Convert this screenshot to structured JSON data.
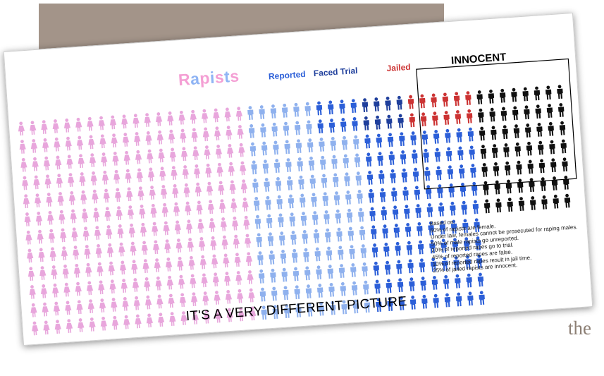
{
  "background": {
    "block_color": "#a39489",
    "corner_text": "the"
  },
  "title_word": "Rapists",
  "title_letter_colors": [
    "#f49fd4",
    "#8fb4f4",
    "#f49fd4",
    "#8fb4f4",
    "#f49fd4",
    "#8fb4f4",
    "#f49fd4"
  ],
  "labels": {
    "reported": "Reported",
    "faced_trial": "Faced Trial",
    "jailed": "Jailed",
    "innocent": "INNOCENT"
  },
  "notes": [
    "Based on:",
    "50% of rapists are female.",
    "Under law, females cannot be prosecuted for raping males.",
    "50% of male rapists go unreported.",
    "20% of reported rapes go to trial.",
    "45% of reported rapes are false.",
    "10% of reported rapes result in jail time.",
    "25% of jailed rapists are innocent."
  ],
  "tagline": "IT'S A VERY DIFFERENT PICTURE",
  "chart_data": {
    "type": "pictograph",
    "columns": 48,
    "rows": 12,
    "segments": [
      {
        "category": "female",
        "icon": "female",
        "color": "#e8a6dc",
        "col_start": 0,
        "col_end": 19,
        "row_start": 0,
        "row_end": 12
      },
      {
        "category": "unreported",
        "icon": "male",
        "color": "#8fb1ee",
        "col_start": 20,
        "col_end": 25,
        "row_start": 0,
        "row_end": 12
      },
      {
        "category": "unreported",
        "icon": "male",
        "color": "#8fb1ee",
        "col_start": 26,
        "col_end": 29,
        "row_start": 2,
        "row_end": 12
      },
      {
        "category": "reported",
        "icon": "male",
        "color": "#2c5fd8",
        "col_start": 26,
        "col_end": 29,
        "row_start": 0,
        "row_end": 2
      },
      {
        "category": "reported",
        "icon": "male",
        "color": "#2c5fd8",
        "col_start": 30,
        "col_end": 39,
        "row_start": 2,
        "row_end": 12
      },
      {
        "category": "faced_trial",
        "icon": "male",
        "color": "#1f3f9c",
        "col_start": 30,
        "col_end": 33,
        "row_start": 0,
        "row_end": 2
      },
      {
        "category": "jailed",
        "icon": "male",
        "color": "#cc3333",
        "col_start": 34,
        "col_end": 39,
        "row_start": 0,
        "row_end": 2
      },
      {
        "category": "innocent",
        "icon": "male",
        "color": "#111111",
        "col_start": 40,
        "col_end": 47,
        "row_start": 0,
        "row_end": 7
      }
    ]
  }
}
